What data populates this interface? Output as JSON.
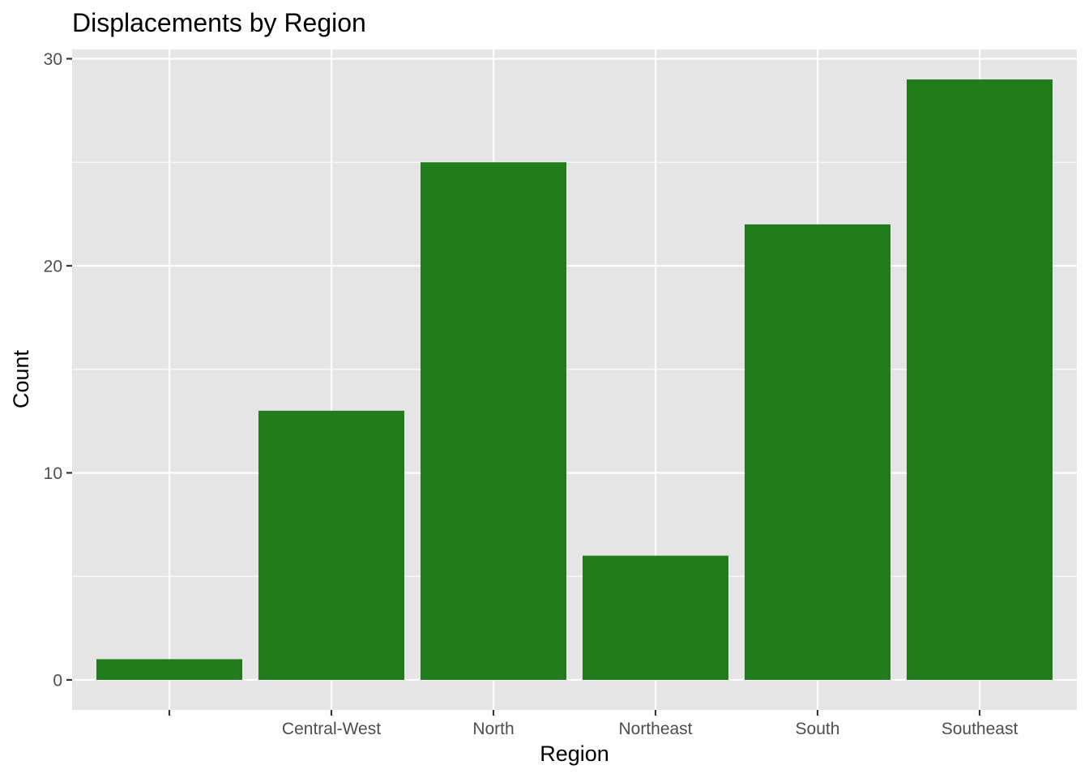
{
  "chart_data": {
    "type": "bar",
    "title": "Displacements by Region",
    "xlabel": "Region",
    "ylabel": "Count",
    "categories": [
      "",
      "Central-West",
      "North",
      "Northeast",
      "South",
      "Southeast"
    ],
    "values": [
      1,
      13,
      25,
      6,
      22,
      29
    ],
    "ylim": [
      -1.45,
      30.45
    ],
    "yticks": [
      0,
      10,
      20,
      30
    ],
    "ytick_labels": [
      "0",
      "10",
      "20",
      "30"
    ],
    "grid": true,
    "legend": "none",
    "colors": {
      "bar": "#217C1C",
      "panel_background": "#E5E5E5",
      "grid": "#FFFFFF"
    }
  }
}
